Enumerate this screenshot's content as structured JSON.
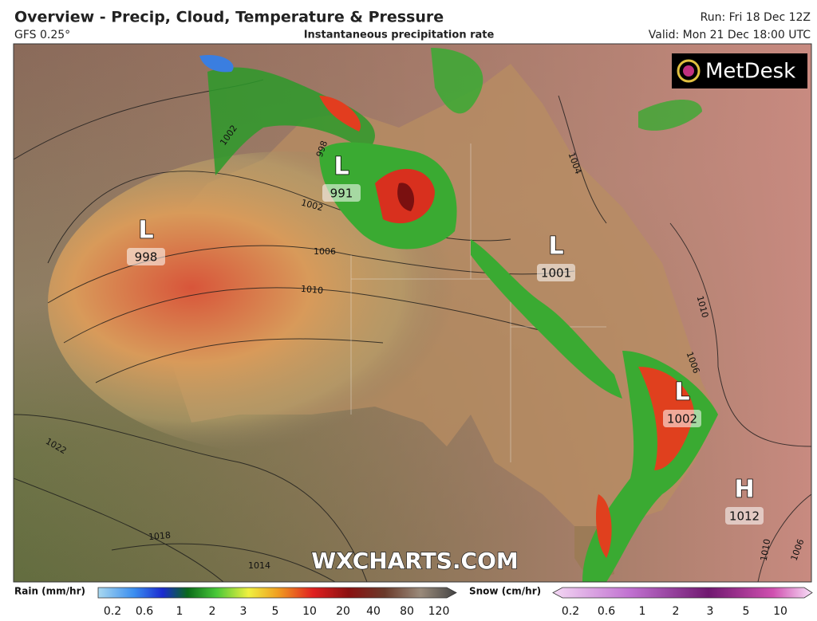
{
  "header": {
    "title": "Overview - Precip, Cloud, Temperature & Pressure",
    "model": "GFS 0.25°",
    "subtitle": "Instantaneous precipitation rate",
    "run": "Run: Fri 18 Dec 12Z",
    "valid": "Valid: Mon 21 Dec 18:00 UTC"
  },
  "logo": "MetDesk",
  "watermark": "WXCHARTS.COM",
  "pressure_centers": [
    {
      "symbol": "L",
      "value": "998"
    },
    {
      "symbol": "L",
      "value": "991"
    },
    {
      "symbol": "L",
      "value": "1001"
    },
    {
      "symbol": "L",
      "value": "1002"
    },
    {
      "symbol": "H",
      "value": "1012"
    }
  ],
  "isobar_labels": [
    "1002",
    "998",
    "1002",
    "1006",
    "1010",
    "1004",
    "1010",
    "1006",
    "1022",
    "1018",
    "1014",
    "1010",
    "1006"
  ],
  "legend": {
    "rain": {
      "title": "Rain (mm/hr)",
      "labels": [
        "0.2",
        "0.6",
        "1",
        "2",
        "3",
        "5",
        "10",
        "20",
        "40",
        "80",
        "120"
      ]
    },
    "snow": {
      "title": "Snow (cm/hr)",
      "labels": [
        "0.2",
        "0.6",
        "1",
        "2",
        "3",
        "5",
        "10"
      ]
    }
  }
}
